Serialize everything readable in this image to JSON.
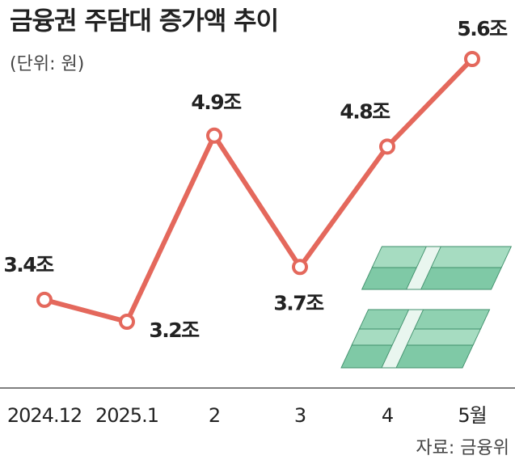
{
  "chart_data": {
    "type": "line",
    "title": "금융권 주담대 증가액 추이",
    "subtitle": "(단위: 원)",
    "source": "자료: 금융위",
    "categories": [
      "2024.12",
      "2025.1",
      "2",
      "3",
      "4",
      "5월"
    ],
    "values": [
      3.4,
      3.2,
      4.9,
      3.7,
      4.8,
      5.6
    ],
    "value_labels": [
      "3.4조",
      "3.2조",
      "4.9조",
      "3.7조",
      "4.8조",
      "5.6조"
    ],
    "color": "#e4685c"
  }
}
